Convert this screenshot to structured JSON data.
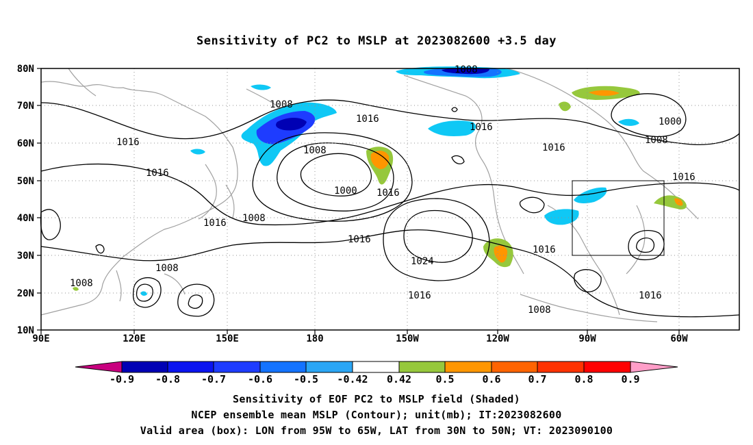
{
  "title": "Sensitivity of PC2 to MSLP at 2023082600 +3.5 day",
  "footer": {
    "line1": "Sensitivity of EOF PC2 to MSLP field (Shaded)",
    "line2": "NCEP ensemble mean MSLP (Contour); unit(mb); IT:2023082600",
    "line3": "Valid area (box): LON from 95W to 65W, LAT from 30N to 50N; VT: 2023090100"
  },
  "lat_ticks": [
    "80N",
    "70N",
    "60N",
    "50N",
    "40N",
    "30N",
    "20N",
    "10N"
  ],
  "lon_ticks": [
    "90E",
    "120E",
    "150E",
    "180",
    "150W",
    "120W",
    "90W",
    "60W"
  ],
  "contour_labels": [
    "1008",
    "1008",
    "1016",
    "1016",
    "1000",
    "1008",
    "1016",
    "1008",
    "1016",
    "1016",
    "1000",
    "1016",
    "1008",
    "1016",
    "1016",
    "1016",
    "1024",
    "1016",
    "1016",
    "1008",
    "1008",
    "1008",
    "1016"
  ],
  "colorbar": {
    "labels": [
      "-0.9",
      "-0.8",
      "-0.7",
      "-0.6",
      "-0.5",
      "-0.42",
      "0.42",
      "0.5",
      "0.6",
      "0.7",
      "0.8",
      "0.9"
    ],
    "colors": [
      "#c8007f",
      "#0000b4",
      "#0a14f0",
      "#1e3cff",
      "#1473ff",
      "#2ba6f5",
      "#0fc8f5",
      "#ffffff",
      "#96c83c",
      "#ff9600",
      "#ff6400",
      "#ff3200",
      "#ff0000",
      "#ff9ec8"
    ]
  },
  "valid_box": {
    "lon_from": "95W",
    "lon_to": "65W",
    "lat_from": "30N",
    "lat_to": "50N"
  }
}
